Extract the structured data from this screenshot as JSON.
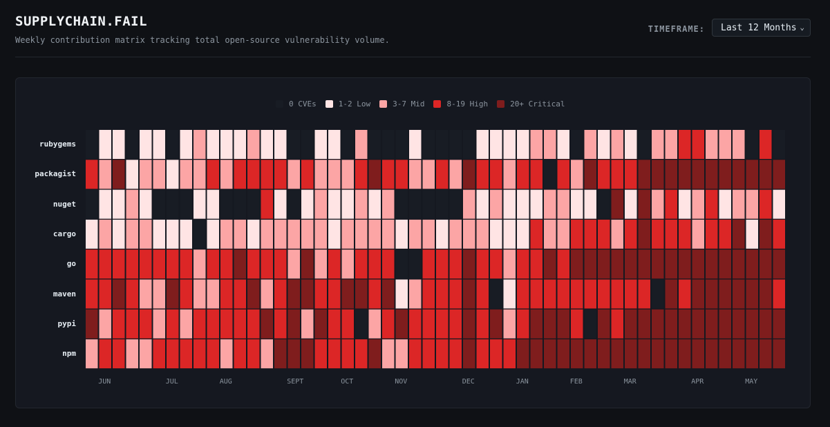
{
  "header": {
    "title": "SUPPLYCHAIN.FAIL",
    "subtitle": "Weekly contribution matrix tracking total open-source vulnerability volume.",
    "timeframe_label": "TIMEFRAME:",
    "timeframe_value": "Last 12 Months"
  },
  "colors": {
    "empty": "#181c24",
    "low": "#ffe4e4",
    "mid": "#fca5a5",
    "high": "#dc2626",
    "critical": "#7f1d1d"
  },
  "chart_data": {
    "type": "heatmap",
    "legend": [
      {
        "label": "0 CVEs",
        "level": 0
      },
      {
        "label": "1-2 Low",
        "level": 1
      },
      {
        "label": "3-7 Mid",
        "level": 2
      },
      {
        "label": "8-19 High",
        "level": 3
      },
      {
        "label": "20+ Critical",
        "level": 4
      }
    ],
    "x_labels": [
      {
        "label": "JUN",
        "week": 1
      },
      {
        "label": "JUL",
        "week": 6
      },
      {
        "label": "AUG",
        "week": 10
      },
      {
        "label": "SEPT",
        "week": 15
      },
      {
        "label": "OCT",
        "week": 19
      },
      {
        "label": "NOV",
        "week": 23
      },
      {
        "label": "DEC",
        "week": 28
      },
      {
        "label": "JAN",
        "week": 32
      },
      {
        "label": "FEB",
        "week": 36
      },
      {
        "label": "MAR",
        "week": 40
      },
      {
        "label": "APR",
        "week": 45
      },
      {
        "label": "MAY",
        "week": 49
      }
    ],
    "rows": [
      {
        "name": "rubygems",
        "levels": [
          0,
          1,
          1,
          0,
          1,
          1,
          0,
          1,
          2,
          1,
          1,
          1,
          2,
          1,
          1,
          0,
          0,
          1,
          1,
          0,
          2,
          0,
          0,
          0,
          1,
          0,
          0,
          0,
          0,
          1,
          1,
          1,
          1,
          2,
          2,
          1,
          0,
          2,
          1,
          2,
          1,
          0,
          2,
          2,
          3,
          3,
          2,
          2,
          2,
          0,
          3,
          0
        ]
      },
      {
        "name": "packagist",
        "levels": [
          3,
          2,
          4,
          1,
          2,
          2,
          1,
          2,
          2,
          3,
          2,
          3,
          3,
          3,
          3,
          2,
          3,
          2,
          2,
          2,
          3,
          4,
          3,
          3,
          2,
          2,
          3,
          2,
          4,
          3,
          3,
          2,
          3,
          3,
          0,
          3,
          2,
          4,
          3,
          3,
          3,
          4,
          4,
          4,
          4,
          4,
          4,
          4,
          4,
          4,
          4,
          4
        ]
      },
      {
        "name": "nuget",
        "levels": [
          0,
          1,
          1,
          2,
          1,
          0,
          0,
          0,
          1,
          1,
          0,
          0,
          0,
          3,
          1,
          0,
          1,
          2,
          1,
          1,
          2,
          1,
          2,
          0,
          0,
          0,
          0,
          0,
          2,
          1,
          2,
          1,
          1,
          1,
          2,
          2,
          1,
          1,
          0,
          4,
          1,
          4,
          2,
          3,
          1,
          2,
          3,
          1,
          2,
          2,
          3,
          1
        ]
      },
      {
        "name": "cargo",
        "levels": [
          1,
          2,
          1,
          2,
          2,
          1,
          1,
          1,
          0,
          1,
          2,
          2,
          1,
          2,
          2,
          2,
          2,
          2,
          1,
          2,
          2,
          2,
          2,
          1,
          2,
          2,
          1,
          2,
          2,
          2,
          1,
          1,
          1,
          3,
          2,
          2,
          3,
          3,
          3,
          2,
          3,
          4,
          3,
          3,
          3,
          2,
          3,
          3,
          4,
          1,
          4,
          3
        ]
      },
      {
        "name": "go",
        "levels": [
          3,
          3,
          3,
          3,
          3,
          3,
          3,
          3,
          2,
          3,
          3,
          4,
          3,
          3,
          3,
          2,
          4,
          2,
          3,
          2,
          3,
          3,
          3,
          0,
          0,
          3,
          3,
          3,
          4,
          3,
          3,
          2,
          3,
          3,
          4,
          3,
          4,
          4,
          4,
          4,
          4,
          4,
          4,
          4,
          4,
          4,
          4,
          4,
          4,
          4,
          4,
          4
        ]
      },
      {
        "name": "maven",
        "levels": [
          3,
          3,
          4,
          3,
          2,
          2,
          4,
          3,
          2,
          2,
          3,
          3,
          4,
          2,
          3,
          4,
          4,
          3,
          3,
          4,
          4,
          3,
          4,
          1,
          2,
          3,
          3,
          3,
          4,
          3,
          0,
          1,
          3,
          3,
          3,
          3,
          3,
          3,
          3,
          3,
          3,
          3,
          0,
          4,
          3,
          4,
          4,
          4,
          4,
          4,
          4,
          3
        ]
      },
      {
        "name": "pypi",
        "levels": [
          4,
          2,
          3,
          3,
          3,
          2,
          3,
          2,
          3,
          3,
          3,
          3,
          3,
          4,
          3,
          4,
          2,
          4,
          3,
          3,
          0,
          2,
          3,
          4,
          3,
          3,
          3,
          3,
          4,
          3,
          4,
          2,
          3,
          4,
          4,
          4,
          3,
          0,
          4,
          3,
          4,
          4,
          4,
          4,
          4,
          4,
          4,
          4,
          4,
          4,
          4,
          4
        ]
      },
      {
        "name": "npm",
        "levels": [
          2,
          3,
          3,
          2,
          2,
          3,
          3,
          3,
          3,
          3,
          2,
          3,
          3,
          2,
          4,
          4,
          4,
          3,
          3,
          3,
          3,
          4,
          2,
          2,
          3,
          3,
          3,
          3,
          4,
          3,
          3,
          3,
          4,
          4,
          4,
          4,
          4,
          4,
          4,
          4,
          4,
          4,
          4,
          4,
          4,
          4,
          4,
          4,
          4,
          4,
          4,
          4
        ]
      }
    ]
  }
}
